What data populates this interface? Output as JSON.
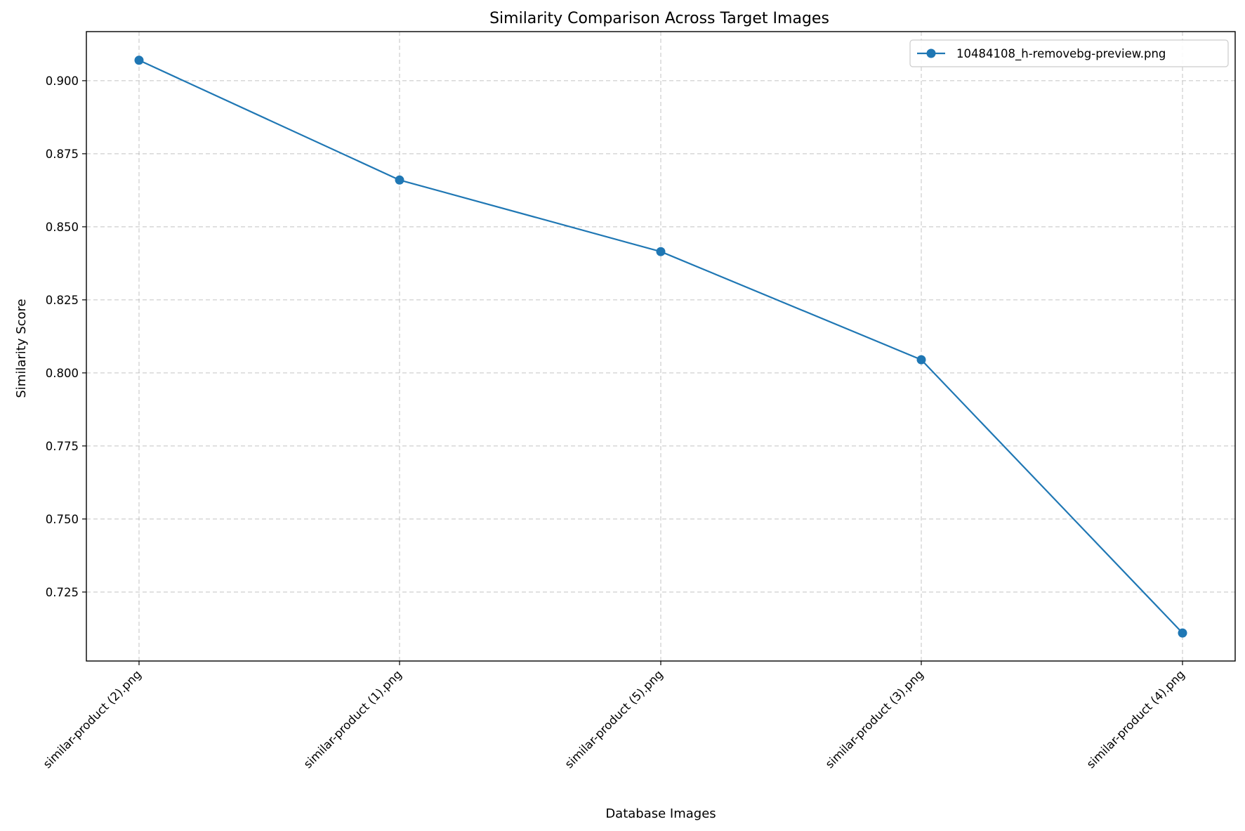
{
  "chart_data": {
    "type": "line",
    "title": "Similarity Comparison Across Target Images",
    "xlabel": "Database Images",
    "ylabel": "Similarity Score",
    "categories": [
      "similar-product (2).png",
      "similar-product (1).png",
      "similar-product (5).png",
      "similar-product (3).png",
      "similar-product (4).png"
    ],
    "series": [
      {
        "name": "10484108_h-removebg-preview.png",
        "color": "#1f77b4",
        "marker": "circle",
        "values": [
          0.907,
          0.866,
          0.8415,
          0.8045,
          0.711
        ]
      }
    ],
    "yticks": [
      "0.725",
      "0.750",
      "0.775",
      "0.800",
      "0.825",
      "0.850",
      "0.875",
      "0.900"
    ],
    "ylim": [
      0.7014,
      0.9168
    ],
    "grid": true,
    "legend_position": "top-right",
    "xtick_rotation": "45 degrees"
  }
}
